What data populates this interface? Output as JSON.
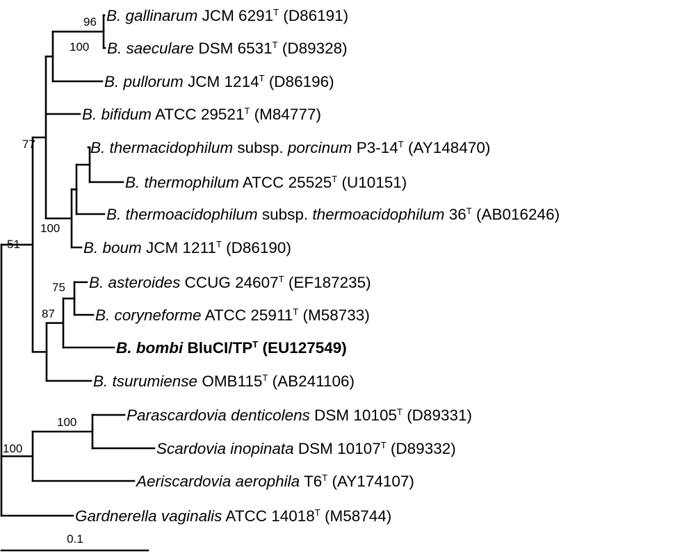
{
  "tree": {
    "nodes": [
      {
        "id": "root",
        "parent": null,
        "support": "51"
      },
      {
        "id": "bifido",
        "parent": "root",
        "support": "77"
      },
      {
        "id": "upper",
        "parent": "bifido",
        "support": ""
      },
      {
        "id": "gsp",
        "parent": "upper",
        "support": "100"
      },
      {
        "id": "gs",
        "parent": "gsp",
        "support": "96"
      },
      {
        "id": "therm",
        "parent": "upper",
        "support": "100"
      },
      {
        "id": "therm3",
        "parent": "therm",
        "support": ""
      },
      {
        "id": "therm2",
        "parent": "therm3",
        "support": ""
      },
      {
        "id": "lower",
        "parent": "bifido",
        "support": ""
      },
      {
        "id": "acb",
        "parent": "lower",
        "support": "87"
      },
      {
        "id": "ac",
        "parent": "acb",
        "support": "75"
      },
      {
        "id": "scardo",
        "parent": "root",
        "support": "100"
      },
      {
        "id": "ps",
        "parent": "scardo",
        "support": "100"
      }
    ],
    "leaves": [
      {
        "parent": "gs",
        "genus": "B. gallinarum",
        "strain": "JCM 6291",
        "sup": "T",
        "accession": "(D86191)",
        "bold": false
      },
      {
        "parent": "gs",
        "genus": "B. saeculare",
        "strain": "DSM 6531",
        "sup": "T",
        "accession": "(D89328)",
        "bold": false
      },
      {
        "parent": "gsp",
        "genus": "B. pullorum",
        "strain": "JCM 1214",
        "sup": "T",
        "accession": "(D86196)",
        "bold": false
      },
      {
        "parent": "upper",
        "genus": "B. bifidum",
        "strain": "ATCC 29521",
        "sup": "T",
        "accession": "(M84777)",
        "bold": false
      },
      {
        "parent": "therm2",
        "genus": "B. thermacidophilum",
        "strain": "subsp. ",
        "strain_italic": "porcinum",
        "strain2": " P3-14",
        "sup": "T",
        "accession": "(AY148470)",
        "bold": false
      },
      {
        "parent": "therm2",
        "genus": "B. thermophilum",
        "strain": "ATCC 25525",
        "sup": "T",
        "accession": "(U10151)",
        "bold": false
      },
      {
        "parent": "therm3",
        "genus": "B. thermoacidophilum",
        "strain": "subsp. ",
        "strain_italic": "thermoacidophilum",
        "strain2": " 36",
        "sup": "T",
        "accession": "(AB016246)",
        "bold": false
      },
      {
        "parent": "therm",
        "genus": "B. boum",
        "strain": "JCM 1211",
        "sup": "T",
        "accession": "(D86190)",
        "bold": false
      },
      {
        "parent": "ac",
        "genus": "B. asteroides",
        "strain": "CCUG 24607",
        "sup": "T",
        "accession": "(EF187235)",
        "bold": false
      },
      {
        "parent": "ac",
        "genus": "B. coryneforme",
        "strain": "ATCC 25911",
        "sup": "T",
        "accession": "(M58733)",
        "bold": false
      },
      {
        "parent": "acb",
        "genus": "B. bombi",
        "strain": "BluCI/TP",
        "sup": "T",
        "accession": "(EU127549)",
        "bold": true
      },
      {
        "parent": "lower",
        "genus": "B. tsurumiense",
        "strain": "OMB115",
        "sup": "T",
        "accession": "(AB241106)",
        "bold": false
      },
      {
        "parent": "ps",
        "genus": "Parascardovia denticolens",
        "strain": "DSM 10105",
        "sup": "T",
        "accession": "(D89331)",
        "bold": false
      },
      {
        "parent": "ps",
        "genus": "Scardovia inopinata",
        "strain": "DSM 10107",
        "sup": "T",
        "accession": "(D89332)",
        "bold": false
      },
      {
        "parent": "scardo",
        "genus": "Aeriscardovia aerophila",
        "strain": "T6",
        "sup": "T",
        "accession": "(AY174107)",
        "bold": false
      },
      {
        "parent": "root",
        "genus": "Gardnerella vaginalis",
        "strain": "ATCC 14018",
        "sup": "T",
        "accession": "(M58744)",
        "bold": false
      }
    ]
  },
  "scale_bar": {
    "label": "0.1"
  }
}
